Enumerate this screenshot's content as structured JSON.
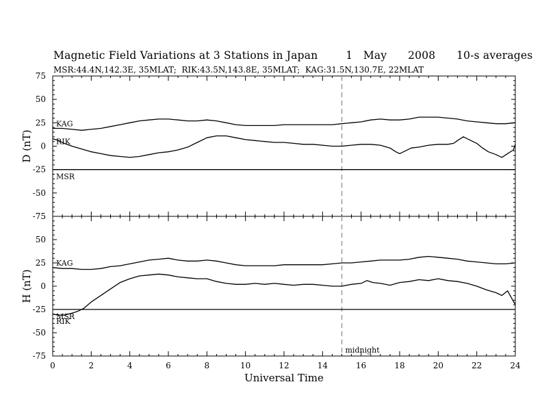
{
  "header": {
    "title": "Magnetic Field Variations at 3 Stations in Japan        1   May      2008      10-s averages",
    "subtitle": "MSR:44.4N,142.3E, 35MLAT;  RIK:43.5N,143.8E, 35MLAT;  KAG:31.5N,130.7E, 22MLAT"
  },
  "chart_data": [
    {
      "type": "line",
      "ylabel": "D (nT)",
      "xlabel": "",
      "xlim": [
        0,
        24
      ],
      "ylim": [
        -75,
        75
      ],
      "yticks": [
        75,
        50,
        25,
        0,
        -25,
        -50,
        -75
      ],
      "grid": false,
      "series": [
        {
          "name": "KAG",
          "x": [
            0,
            0.5,
            1,
            1.5,
            2,
            2.5,
            3,
            3.5,
            4,
            4.5,
            5,
            5.5,
            6,
            6.5,
            7,
            7.5,
            8,
            8.5,
            9,
            9.5,
            10,
            10.5,
            11,
            11.5,
            12,
            12.5,
            13,
            13.5,
            14,
            14.5,
            15,
            15.5,
            16,
            16.5,
            17,
            17.5,
            18,
            18.5,
            19,
            19.5,
            20,
            20.5,
            21,
            21.5,
            22,
            22.5,
            23,
            23.5,
            24
          ],
          "y": [
            19,
            19,
            18,
            17,
            18,
            19,
            21,
            23,
            25,
            27,
            28,
            29,
            29,
            28,
            27,
            27,
            28,
            27,
            25,
            23,
            22,
            22,
            22,
            22,
            23,
            23,
            23,
            23,
            23,
            23,
            24,
            25,
            26,
            28,
            29,
            28,
            28,
            29,
            31,
            31,
            31,
            30,
            29,
            27,
            26,
            25,
            24,
            24,
            25
          ]
        },
        {
          "name": "RIK",
          "x": [
            0,
            0.3,
            0.6,
            1,
            1.5,
            2,
            2.5,
            3,
            3.5,
            4,
            4.5,
            5,
            5.5,
            6,
            6.5,
            7,
            7.5,
            8,
            8.5,
            9,
            9.5,
            10,
            10.5,
            11,
            11.5,
            12,
            12.5,
            13,
            13.5,
            14,
            14.5,
            15,
            15.5,
            16,
            16.5,
            17,
            17.5,
            17.8,
            18,
            18.3,
            18.6,
            19,
            19.5,
            20,
            20.5,
            20.8,
            21,
            21.3,
            21.6,
            22,
            22.3,
            22.6,
            23,
            23.3,
            23.6,
            23.9,
            24
          ],
          "y": [
            8,
            6,
            3,
            0,
            -3,
            -6,
            -8,
            -10,
            -11,
            -12,
            -11,
            -9,
            -7,
            -6,
            -4,
            -1,
            4,
            9,
            11,
            11,
            9,
            7,
            6,
            5,
            4,
            4,
            3,
            2,
            2,
            1,
            0,
            0,
            1,
            2,
            2,
            1,
            -2,
            -6,
            -8,
            -5,
            -2,
            -1,
            1,
            2,
            2,
            3,
            6,
            10,
            7,
            3,
            -2,
            -6,
            -9,
            -12,
            -8,
            -4,
            2
          ]
        },
        {
          "name": "MSR",
          "x": [
            0,
            24
          ],
          "y": [
            -25,
            -25
          ]
        }
      ]
    },
    {
      "type": "line",
      "ylabel": "H (nT)",
      "xlabel": "Universal Time",
      "xlim": [
        0,
        24
      ],
      "ylim": [
        -75,
        75
      ],
      "xticks": [
        0,
        2,
        4,
        6,
        8,
        10,
        12,
        14,
        16,
        18,
        20,
        22,
        24
      ],
      "yticks": [
        75,
        50,
        25,
        0,
        -25,
        -50,
        -75
      ],
      "grid": false,
      "annotation": {
        "x": 15,
        "text": "midnight"
      },
      "series": [
        {
          "name": "KAG",
          "x": [
            0,
            0.5,
            1,
            1.5,
            2,
            2.5,
            3,
            3.5,
            4,
            4.5,
            5,
            5.5,
            6,
            6.5,
            7,
            7.5,
            8,
            8.5,
            9,
            9.5,
            10,
            10.5,
            11,
            11.5,
            12,
            12.5,
            13,
            13.5,
            14,
            14.5,
            15,
            15.5,
            16,
            16.5,
            17,
            17.5,
            18,
            18.5,
            19,
            19.5,
            20,
            20.5,
            21,
            21.5,
            22,
            22.5,
            23,
            23.5,
            24
          ],
          "y": [
            20,
            19,
            19,
            18,
            18,
            19,
            21,
            22,
            24,
            26,
            28,
            29,
            30,
            28,
            27,
            27,
            28,
            27,
            25,
            23,
            22,
            22,
            22,
            22,
            23,
            23,
            23,
            23,
            23,
            24,
            25,
            25,
            26,
            27,
            28,
            28,
            28,
            29,
            31,
            32,
            31,
            30,
            29,
            27,
            26,
            25,
            24,
            24,
            25
          ]
        },
        {
          "name": "RIK",
          "x": [
            0,
            0.3,
            0.6,
            1,
            1.3,
            1.6,
            2,
            2.5,
            3,
            3.5,
            4,
            4.5,
            5,
            5.5,
            6,
            6.5,
            7,
            7.5,
            8,
            8.5,
            9,
            9.5,
            10,
            10.5,
            11,
            11.5,
            12,
            12.5,
            13,
            13.5,
            14,
            14.5,
            15,
            15.5,
            16,
            16.3,
            16.6,
            17,
            17.5,
            18,
            18.5,
            19,
            19.5,
            20,
            20.5,
            21,
            21.5,
            22,
            22.5,
            23,
            23.3,
            23.6,
            24
          ],
          "y": [
            -30,
            -31,
            -31,
            -29,
            -27,
            -24,
            -17,
            -10,
            -3,
            4,
            8,
            11,
            12,
            13,
            12,
            10,
            9,
            8,
            8,
            5,
            3,
            2,
            2,
            3,
            2,
            3,
            2,
            1,
            2,
            2,
            1,
            0,
            0,
            2,
            3,
            6,
            4,
            3,
            1,
            4,
            5,
            7,
            6,
            8,
            6,
            5,
            3,
            0,
            -4,
            -7,
            -10,
            -5,
            -20
          ]
        },
        {
          "name": "MSR",
          "x": [
            0,
            24
          ],
          "y": [
            -25,
            -25
          ]
        }
      ]
    }
  ]
}
